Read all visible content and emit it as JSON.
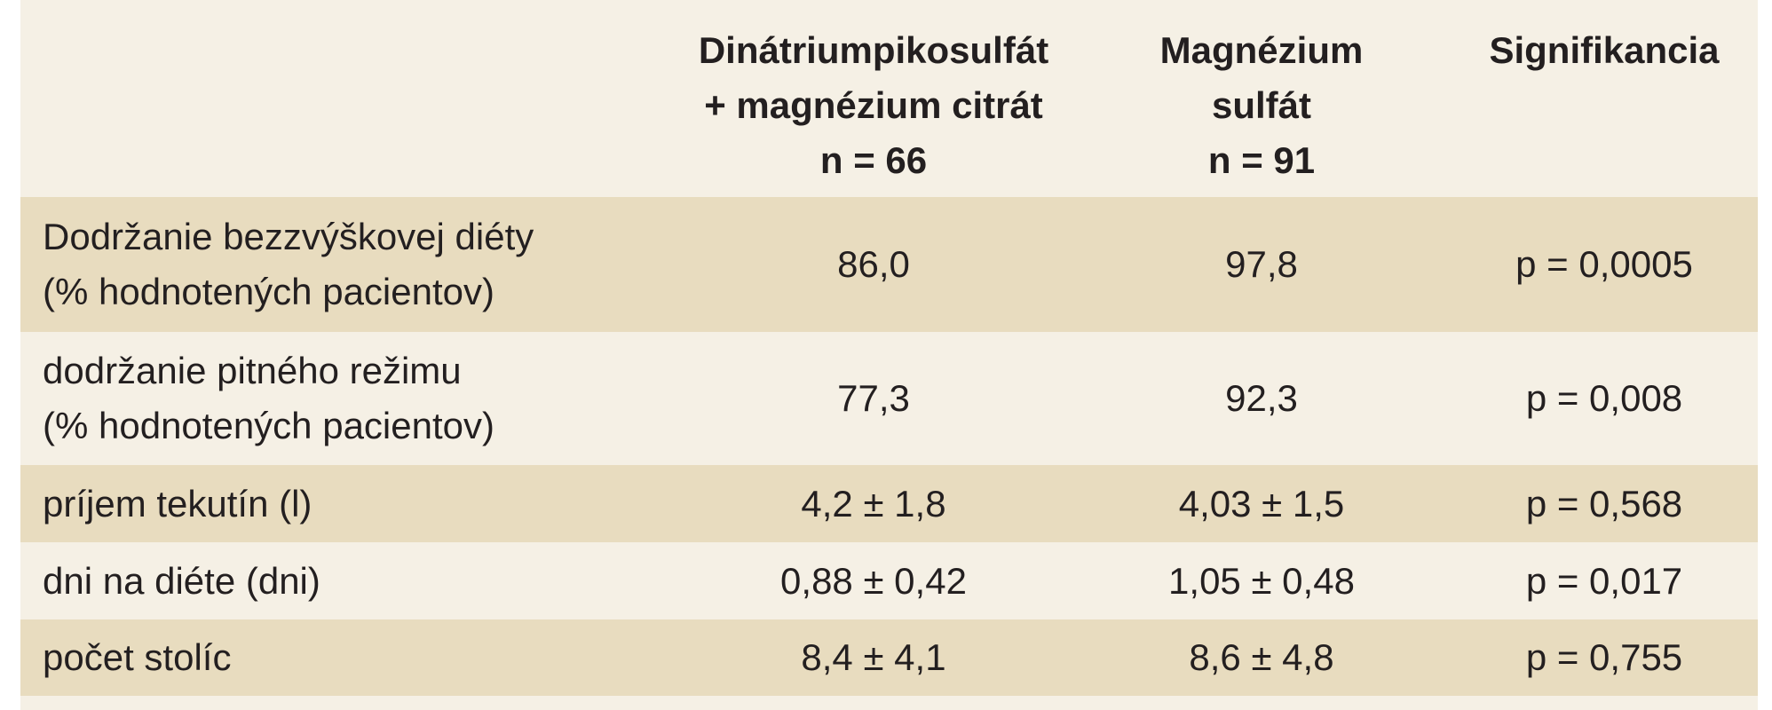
{
  "table": {
    "columns": [
      [
        "Dinátriumpikosulfát",
        "+ magnézium citrát",
        "n = 66"
      ],
      [
        "Magnézium",
        "sulfát",
        "n = 91"
      ],
      [
        "Signifikancia"
      ]
    ],
    "rows": [
      [
        [
          "Dodržanie bezzvýškovej diéty",
          "(% hodnotených pacientov)"
        ],
        "86,0",
        "97,8",
        "p = 0,0005"
      ],
      [
        [
          "dodržanie pitného režimu",
          "(% hodnotených pacientov)"
        ],
        "77,3",
        "92,3",
        "p = 0,008"
      ],
      [
        [
          "príjem tekutín (l)"
        ],
        "4,2 ± 1,8",
        "4,03 ± 1,5",
        "p = 0,568"
      ],
      [
        [
          "dni na diéte (dni)"
        ],
        "0,88 ± 0,42",
        "1,05 ± 0,48",
        "p = 0,017"
      ],
      [
        [
          "počet stolíc"
        ],
        "8,4 ± 4,1",
        "8,6 ± 4,8",
        "p = 0,755"
      ]
    ]
  }
}
